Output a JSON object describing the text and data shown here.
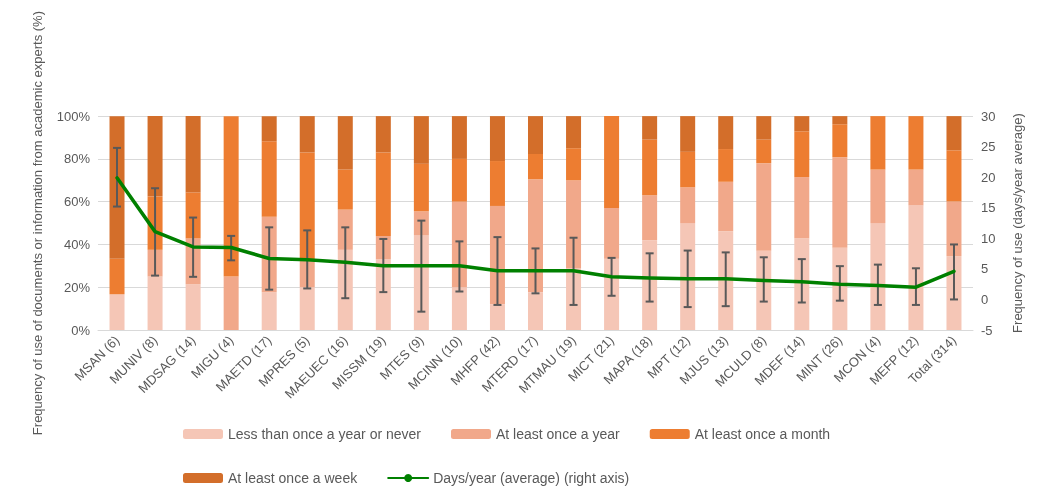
{
  "chart_data": {
    "type": "bar",
    "stacked": true,
    "ylabel": "Frequency of use of documents or information from academic experts (%)",
    "y2label": "Frequency of use (days/year average)",
    "categories": [
      "MSAN (6)",
      "MUNIV (8)",
      "MDSAG (14)",
      "MIGU (4)",
      "MAETD (17)",
      "MPRES (5)",
      "MAEUEC (16)",
      "MISSM (19)",
      "MTES (9)",
      "MCINN (10)",
      "MHFP (42)",
      "MTERD (17)",
      "MTMAU (19)",
      "MICT (21)",
      "MAPA (18)",
      "MPT (12)",
      "MJUS (13)",
      "MCULD (8)",
      "MDEF (14)",
      "MINT (26)",
      "MCON (4)",
      "MEFP (12)",
      "Total (314)"
    ],
    "series": [
      {
        "name": "Less than once a year or never",
        "color": "#f5c6b6",
        "values": [
          16.7,
          25,
          21.4,
          0,
          17.6,
          20,
          37.5,
          33,
          44.4,
          20,
          12,
          17.6,
          29,
          33.3,
          42,
          50,
          46.2,
          37,
          42.9,
          38.5,
          50,
          58.3,
          34.5
        ]
      },
      {
        "name": "At least once a year",
        "color": "#f1a88a",
        "values": [
          0,
          12.5,
          21.4,
          25,
          35.3,
          13,
          18.8,
          11,
          11.1,
          40,
          46,
          52.9,
          41,
          23.8,
          21,
          16.7,
          23.1,
          41,
          28.6,
          42.3,
          25,
          16.7,
          25.6
        ]
      },
      {
        "name": "At least once a month",
        "color": "#ed7d31",
        "values": [
          16.6,
          25,
          21.5,
          75,
          35.3,
          50,
          18.7,
          39,
          22.2,
          20,
          21,
          11.8,
          15,
          42.9,
          26,
          16.6,
          15.3,
          11,
          21.4,
          15.4,
          25,
          25,
          23.9
        ]
      },
      {
        "name": "At least once a week",
        "color": "#d36e2a",
        "values": [
          66.7,
          37.5,
          35.7,
          0,
          11.8,
          17,
          25,
          17,
          22.3,
          20,
          21,
          17.7,
          15,
          0,
          11,
          16.7,
          15.4,
          11,
          7.1,
          3.8,
          0,
          0,
          16
        ]
      },
      {
        "name": "Days/year (average) (right axis)",
        "type": "line",
        "axis": "y2",
        "color": "#008000",
        "marker": "none",
        "values": [
          19.9,
          11.1,
          8.6,
          8.5,
          6.7,
          6.5,
          6.1,
          5.5,
          5.5,
          5.5,
          4.7,
          4.7,
          4.7,
          3.7,
          3.5,
          3.4,
          3.4,
          3.1,
          2.9,
          2.5,
          2.3,
          2.0,
          4.6
        ],
        "errors": [
          [
            15.2,
            24.8
          ],
          [
            3.9,
            18.2
          ],
          [
            3.7,
            13.4
          ],
          [
            6.4,
            10.4
          ],
          [
            1.6,
            11.8
          ],
          [
            1.8,
            11.3
          ],
          [
            0.2,
            11.8
          ],
          [
            1.2,
            9.9
          ],
          [
            -2.0,
            12.9
          ],
          [
            1.3,
            9.5
          ],
          [
            -0.9,
            10.2
          ],
          [
            1.0,
            8.35
          ],
          [
            -0.9,
            10.1
          ],
          [
            0.6,
            6.8
          ],
          [
            -0.35,
            7.55
          ],
          [
            -1.25,
            8.0
          ],
          [
            -1.1,
            7.7
          ],
          [
            -0.35,
            6.9
          ],
          [
            -0.5,
            6.6
          ],
          [
            -0.2,
            5.45
          ],
          [
            -0.9,
            5.7
          ],
          [
            -0.9,
            5.1
          ],
          [
            0.0,
            9.0
          ]
        ]
      }
    ],
    "ylim": [
      0,
      100
    ],
    "yticks": [
      {
        "value": 0,
        "label": "0%"
      },
      {
        "value": 20,
        "label": "20%"
      },
      {
        "value": 40,
        "label": "40%"
      },
      {
        "value": 60,
        "label": "60%"
      },
      {
        "value": 80,
        "label": "80%"
      },
      {
        "value": 100,
        "label": "100%"
      }
    ],
    "y2lim": [
      -5,
      30
    ],
    "y2ticks": [
      -5,
      0,
      5,
      10,
      15,
      20,
      25,
      30
    ],
    "grid": "y",
    "legend": "bottom"
  }
}
